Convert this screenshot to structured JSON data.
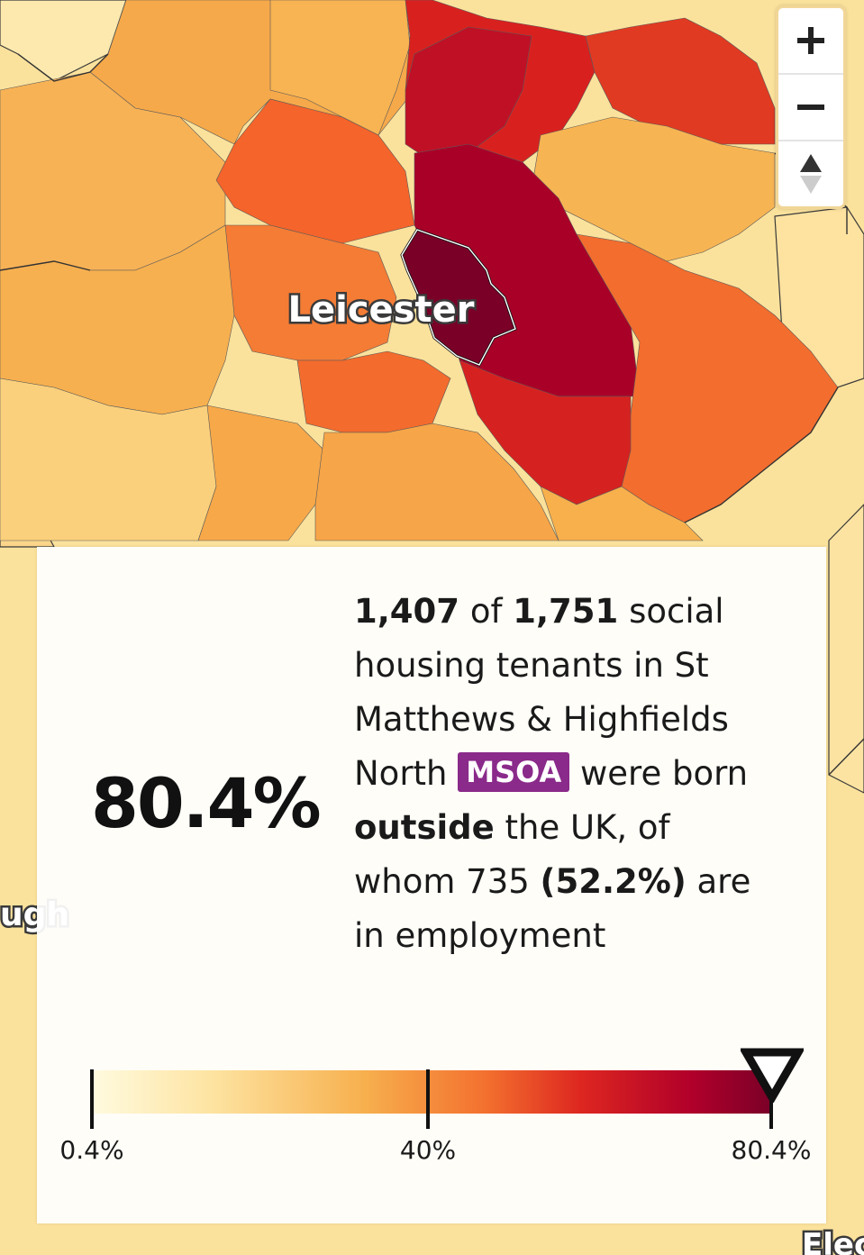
{
  "map": {
    "place_labels": [
      {
        "name": "Leicester"
      },
      {
        "name": "ugh"
      },
      {
        "name": "Elec"
      }
    ],
    "selected_area_type": "MSOA"
  },
  "zoom_controls": {
    "zoom_in_icon": "plus-icon",
    "zoom_out_icon": "minus-icon",
    "reset_icon": "up-down-triangles-icon"
  },
  "panel": {
    "big_value": "80.4%",
    "desc": {
      "count": "1,407",
      "of": "of",
      "total": "1,751",
      "t1": "social housing tenants in St Matthews & Highfields North",
      "badge": "MSOA",
      "t2": "were born",
      "emph": "outside",
      "t3": "the UK, of whom 735",
      "pct": "(52.2%)",
      "t4": "are in employment"
    }
  },
  "legend": {
    "min_label": "0.4%",
    "mid_label": "40%",
    "max_label": "80.4%",
    "min": 0.4,
    "max": 80.4,
    "marker_value": 80.4,
    "marker_icon": "down-triangle-icon",
    "colors": [
      "#fffbe0",
      "#fde3a0",
      "#f7b04e",
      "#f3702e",
      "#dd2620",
      "#b1002a",
      "#7a0028"
    ]
  }
}
